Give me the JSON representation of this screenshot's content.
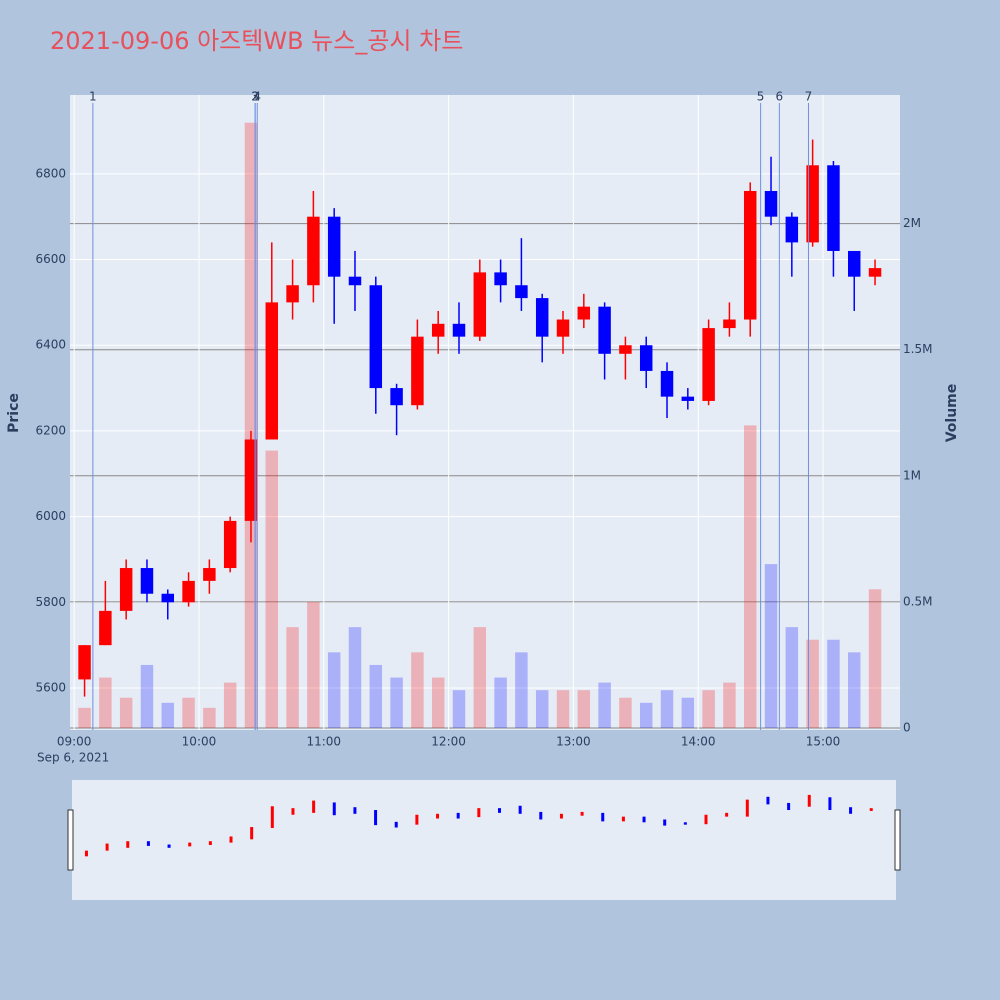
{
  "chart_data": {
    "type": "candlestick",
    "title": "2021-09-06 아즈텍WB 뉴스_공시 차트",
    "x_sublabel": "Sep 6, 2021",
    "y_title": "Price",
    "y2_title": "Volume",
    "x": [
      "09:00",
      "09:10",
      "09:20",
      "09:30",
      "09:40",
      "09:50",
      "10:00",
      "10:10",
      "10:20",
      "10:30",
      "10:40",
      "10:50",
      "11:00",
      "11:10",
      "11:20",
      "11:30",
      "11:40",
      "11:50",
      "12:00",
      "12:10",
      "12:20",
      "12:30",
      "12:40",
      "12:50",
      "13:00",
      "13:10",
      "13:20",
      "13:30",
      "13:40",
      "13:50",
      "14:00",
      "14:10",
      "14:20",
      "14:30",
      "14:40",
      "14:50",
      "15:00",
      "15:10",
      "15:20"
    ],
    "open": [
      5620,
      5700,
      5780,
      5880,
      5820,
      5800,
      5850,
      5880,
      5990,
      6180,
      6500,
      6540,
      6700,
      6560,
      6540,
      6300,
      6260,
      6420,
      6450,
      6420,
      6570,
      6540,
      6510,
      6420,
      6460,
      6490,
      6380,
      6400,
      6340,
      6280,
      6270,
      6440,
      6460,
      6760,
      6700,
      6640,
      6820,
      6620,
      6560
    ],
    "high": [
      5700,
      5850,
      5900,
      5900,
      5830,
      5870,
      5900,
      6000,
      6200,
      6640,
      6600,
      6760,
      6720,
      6620,
      6560,
      6310,
      6460,
      6480,
      6500,
      6600,
      6600,
      6650,
      6520,
      6480,
      6520,
      6500,
      6420,
      6420,
      6360,
      6300,
      6460,
      6500,
      6780,
      6840,
      6710,
      6880,
      6830,
      6620,
      6600
    ],
    "low": [
      5580,
      5700,
      5760,
      5800,
      5760,
      5790,
      5820,
      5870,
      5940,
      6180,
      6460,
      6500,
      6450,
      6480,
      6240,
      6190,
      6250,
      6380,
      6380,
      6410,
      6500,
      6480,
      6360,
      6380,
      6440,
      6320,
      6320,
      6300,
      6230,
      6250,
      6260,
      6420,
      6420,
      6680,
      6560,
      6630,
      6560,
      6480,
      6540
    ],
    "close": [
      5700,
      5780,
      5880,
      5820,
      5800,
      5850,
      5880,
      5990,
      6180,
      6500,
      6540,
      6700,
      6560,
      6540,
      6300,
      6260,
      6420,
      6450,
      6420,
      6570,
      6540,
      6510,
      6420,
      6460,
      6490,
      6380,
      6400,
      6340,
      6280,
      6270,
      6440,
      6460,
      6760,
      6700,
      6640,
      6820,
      6620,
      6560,
      6580
    ],
    "volume": [
      80000,
      200000,
      120000,
      250000,
      100000,
      120000,
      80000,
      180000,
      2400000,
      1100000,
      400000,
      500000,
      300000,
      400000,
      250000,
      200000,
      300000,
      200000,
      150000,
      400000,
      200000,
      300000,
      150000,
      150000,
      150000,
      180000,
      120000,
      100000,
      150000,
      120000,
      150000,
      180000,
      1200000,
      650000,
      400000,
      350000,
      350000,
      300000,
      550000
    ],
    "up_color": "#ff0000",
    "down_color": "#0000ff",
    "xlim": [
      "08:58",
      "15:37"
    ],
    "xticks": [
      "09:00",
      "10:00",
      "11:00",
      "12:00",
      "13:00",
      "14:00",
      "15:00"
    ],
    "ylim": [
      5502,
      6984
    ],
    "yticks": [
      5600,
      5800,
      6000,
      6200,
      6400,
      6600,
      6800
    ],
    "y2lim": [
      0,
      2510000
    ],
    "y2ticks": [
      0,
      {
        "value": 500000,
        "label": "0.5M"
      },
      {
        "value": 1000000,
        "label": "1M"
      },
      {
        "value": 1500000,
        "label": "1.5M"
      },
      {
        "value": 2000000,
        "label": "2M"
      }
    ],
    "annotations": [
      {
        "x": "09:09",
        "text": "1"
      },
      {
        "x": "10:27",
        "text": "2"
      },
      {
        "x": "10:27",
        "text": "3"
      },
      {
        "x": "10:28",
        "text": "4"
      },
      {
        "x": "14:30",
        "text": "5"
      },
      {
        "x": "14:39",
        "text": "6"
      },
      {
        "x": "14:53",
        "text": "7"
      }
    ],
    "grid": true
  }
}
